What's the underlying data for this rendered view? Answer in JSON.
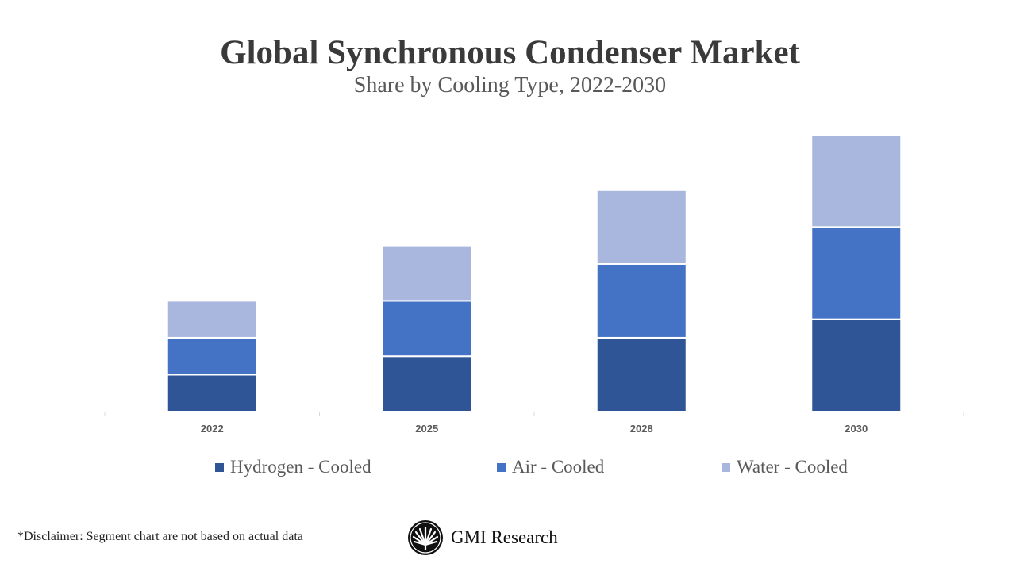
{
  "chart_data": {
    "type": "bar",
    "stacked": true,
    "title": "Global Synchronous Condenser Market",
    "subtitle": "Share by Cooling Type, 2022-2030",
    "categories": [
      "2022",
      "2025",
      "2028",
      "2030"
    ],
    "series": [
      {
        "name": "Hydrogen - Cooled",
        "color": "#2f5597",
        "values": [
          2,
          3,
          4,
          5
        ]
      },
      {
        "name": "Air - Cooled",
        "color": "#4472c4",
        "values": [
          2,
          3,
          4,
          5
        ]
      },
      {
        "name": "Water - Cooled",
        "color": "#a9b7de",
        "values": [
          2,
          3,
          4,
          5
        ]
      }
    ],
    "xlabel": "",
    "ylabel": "",
    "ylim": [
      0,
      15
    ],
    "y_axis_visible": false,
    "grid": false,
    "legend_position": "bottom"
  },
  "footer": {
    "disclaimer": "*Disclaimer:   Segment chart are not based on actual data",
    "logo_text": "GMI Research"
  }
}
